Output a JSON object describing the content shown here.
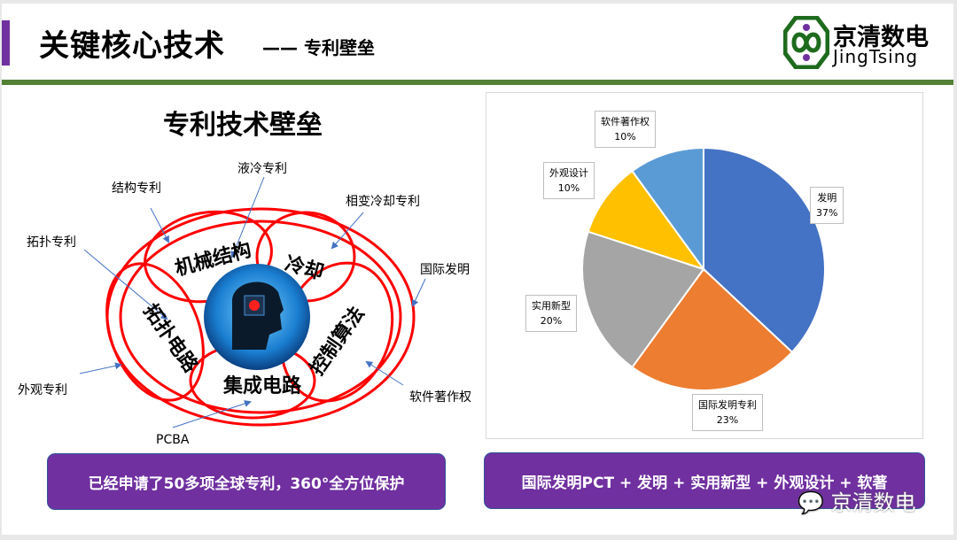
{
  "header": {
    "title": "关键核心技术",
    "dash": "——",
    "subtitle": "专利壁垒",
    "accent_color": "#7030a0",
    "bar_color": "#548235"
  },
  "logo": {
    "cn": "京清数电",
    "en": "JingTsing"
  },
  "diagram": {
    "title": "专利技术壁垒",
    "petals": [
      "机械结构",
      "冷却",
      "拓扑电路",
      "控制算法",
      "集成电路"
    ],
    "callouts": [
      "液冷专利",
      "结构专利",
      "相变冷却专利",
      "拓扑专利",
      "国际发明",
      "外观专利",
      "软件著作权",
      "PCBA"
    ],
    "ring_color": "#ff0000"
  },
  "left_banner": "已经申请了50多项全球专利，360°全方位保护",
  "right_banner": "国际发明PCT + 发明 + 实用新型 + 外观设计 + 软著",
  "watermark": "京清数电",
  "chart_data": {
    "type": "pie",
    "start": "top",
    "direction": "clockwise",
    "slices": [
      {
        "label": "发明",
        "value": 37,
        "pct": "37%",
        "color": "#4472c4"
      },
      {
        "label": "国际发明专利",
        "value": 23,
        "pct": "23%",
        "color": "#ed7d31"
      },
      {
        "label": "实用新型",
        "value": 20,
        "pct": "20%",
        "color": "#a5a5a5"
      },
      {
        "label": "外观设计",
        "value": 10,
        "pct": "10%",
        "color": "#ffc000"
      },
      {
        "label": "软件著作权",
        "value": 10,
        "pct": "10%",
        "color": "#5b9bd5"
      }
    ]
  }
}
